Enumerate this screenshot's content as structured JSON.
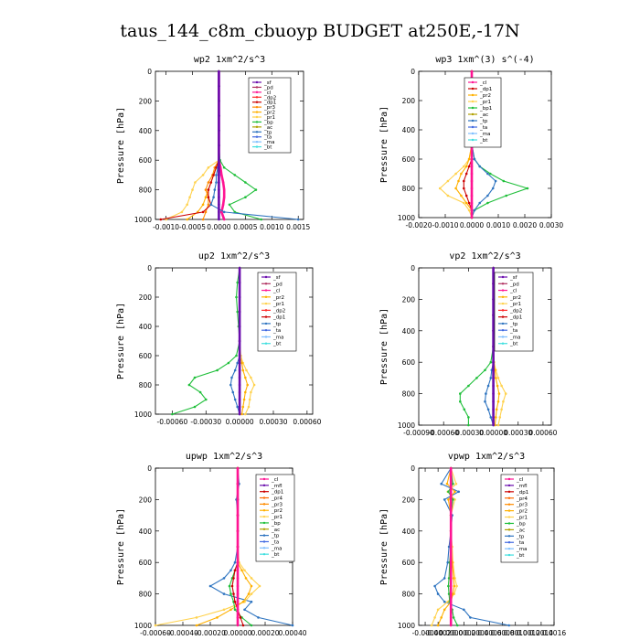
{
  "title": "taus_144_c8m_cbuoyp  BUDGET at250E,-17N",
  "ylabel": "Pressure [hPa]",
  "colors": {
    "sf": "#6a0dad",
    "mfl": "#6a0dad",
    "pd": "#b03060",
    "cl": "#ff1493",
    "dp2": "#ff2a2a",
    "dp1": "#cc0000",
    "pr1": "#ffd24d",
    "pr2": "#ffb000",
    "pr3": "#ff8c00",
    "pr4": "#ff6a00",
    "bp": "#1fbf3a",
    "bp1": "#1fbf3a",
    "ac": "#b0a000",
    "tp": "#2e74c0",
    "ta": "#4169e1",
    "ma": "#7fbfff",
    "bt": "#3fdfdf"
  },
  "chart_data": [
    {
      "type": "line",
      "title": "wp2  1xm^2/s^3",
      "xlim": [
        -0.0012,
        0.0016
      ],
      "xticks": [
        -0.001,
        -0.0005,
        0.0,
        0.0005,
        0.001,
        0.0015
      ],
      "xtick_labels": [
        "-0.0010",
        "-0.0005",
        "0.0000",
        "0.0005",
        "0.0010",
        "0.0015"
      ],
      "ylim": [
        1000,
        0
      ],
      "yticks": [
        0,
        200,
        400,
        600,
        800,
        1000
      ],
      "ytick_labels": [
        "0",
        "200",
        "400",
        "600",
        "800",
        "1000"
      ],
      "levels": [
        0,
        100,
        200,
        300,
        400,
        500,
        600,
        650,
        700,
        750,
        800,
        850,
        900,
        950,
        1000
      ],
      "legend": [
        "_sf",
        "_pd",
        "_cl",
        "_dp2",
        "_dp1",
        "_pr3",
        "_pr2",
        "_pr1",
        "_bp",
        "_ac",
        "_tp",
        "_ta",
        "_ma",
        "_bt"
      ],
      "series": [
        {
          "key": "pr1",
          "values": [
            0,
            0,
            0,
            0,
            0,
            0,
            0,
            -0.0002,
            -0.0003,
            -0.00045,
            -0.0005,
            -0.00055,
            -0.0006,
            -0.0007,
            -0.001
          ]
        },
        {
          "key": "pr2",
          "values": [
            0,
            0,
            0,
            0,
            0,
            0,
            0,
            -5e-05,
            -0.0001,
            -0.00015,
            -0.0002,
            -0.00025,
            -0.0003,
            -0.0004,
            -0.0006
          ]
        },
        {
          "key": "pr3",
          "values": [
            0,
            0,
            0,
            0,
            0,
            0,
            0,
            -8e-05,
            -0.00012,
            -0.0002,
            -0.00025,
            -0.0002,
            -0.0002,
            -0.00025,
            -0.0003
          ]
        },
        {
          "key": "dp1",
          "values": [
            0,
            0,
            0,
            0,
            0,
            0,
            0,
            -5e-05,
            -0.0001,
            -0.00015,
            -0.0002,
            -0.0002,
            -0.00015,
            -0.0003,
            -0.0011
          ]
        },
        {
          "key": "cl",
          "values": [
            0,
            0,
            0,
            0,
            0,
            0,
            0,
            3e-05,
            5e-05,
            8e-05,
            0.0001,
            0.0001,
            8e-05,
            5e-05,
            0.0001
          ]
        },
        {
          "key": "bp",
          "values": [
            0,
            0,
            0,
            0,
            0,
            0,
            2e-05,
            0.0001,
            0.0003,
            0.0005,
            0.0007,
            0.0005,
            0.0002,
            0.0003,
            0.0008
          ]
        },
        {
          "key": "tp",
          "values": [
            0,
            0,
            0,
            0,
            0,
            0,
            0,
            -2e-05,
            -5e-05,
            -5e-05,
            -8e-05,
            -0.0001,
            -0.00015,
            0.0001,
            0.0015
          ]
        },
        {
          "key": "sf",
          "values": [
            0,
            0,
            0,
            0,
            0,
            0,
            0,
            0,
            0,
            0,
            0,
            0,
            0,
            0,
            0
          ]
        }
      ]
    },
    {
      "type": "line",
      "title": "wp3  1xm^(3) s^(-4)",
      "xlim": [
        -0.002,
        0.003
      ],
      "xticks": [
        -0.002,
        -0.001,
        0.0,
        0.001,
        0.002,
        0.003
      ],
      "xtick_labels": [
        "-0.0020",
        "-0.0010",
        "0.0000",
        "0.0010",
        "0.0020",
        "0.0030"
      ],
      "ylim": [
        1000,
        0
      ],
      "yticks": [
        0,
        200,
        400,
        600,
        800,
        1000
      ],
      "ytick_labels": [
        "0",
        "200",
        "400",
        "600",
        "800",
        "1000"
      ],
      "levels": [
        0,
        100,
        200,
        300,
        400,
        500,
        600,
        650,
        700,
        750,
        800,
        850,
        900,
        950,
        1000
      ],
      "legend": [
        "_cl",
        "_dp1",
        "_pr2",
        "_pr1",
        "_bp1",
        "_ac",
        "_tp",
        "_ta",
        "_ma",
        "_bt"
      ],
      "series": [
        {
          "key": "pr1",
          "values": [
            0,
            0,
            0,
            0,
            0,
            0,
            -0.0001,
            -0.0003,
            -0.0006,
            -0.0009,
            -0.0012,
            -0.0009,
            -0.0003,
            -0.0001,
            0
          ]
        },
        {
          "key": "pr2",
          "values": [
            0,
            0,
            0,
            0,
            0,
            0,
            -0.0001,
            -0.0002,
            -0.0004,
            -0.0005,
            -0.0006,
            -0.0004,
            -0.0002,
            0,
            0
          ]
        },
        {
          "key": "bp1",
          "values": [
            0,
            0,
            0,
            0,
            0,
            0,
            0.0001,
            0.0003,
            0.0007,
            0.0012,
            0.0021,
            0.0013,
            0.0006,
            0.0001,
            0
          ]
        },
        {
          "key": "tp",
          "values": [
            0,
            0,
            0,
            0,
            0,
            0,
            0.0001,
            0.0003,
            0.0006,
            0.0009,
            0.0008,
            0.0006,
            0.0003,
            0.0001,
            0
          ]
        },
        {
          "key": "dp1",
          "values": [
            0,
            0,
            0,
            0,
            0,
            0,
            0,
            -0.0001,
            -0.0002,
            -0.0003,
            -0.0003,
            -0.0002,
            -0.0001,
            0,
            0
          ]
        },
        {
          "key": "cl",
          "values": [
            0,
            0,
            0,
            0,
            0,
            0,
            0,
            0,
            0,
            0,
            0,
            0,
            0,
            0,
            0
          ]
        }
      ]
    },
    {
      "type": "line",
      "title": "up2  1xm^2/s^3",
      "xlim": [
        -0.00075,
        0.00065
      ],
      "xticks": [
        -0.0006,
        -0.0003,
        0.0,
        0.0003,
        0.0006
      ],
      "xtick_labels": [
        "-0.00060",
        "-0.00030",
        "0.00000",
        "0.00030",
        "0.00060"
      ],
      "ylim": [
        1000,
        0
      ],
      "yticks": [
        0,
        200,
        400,
        600,
        800,
        1000
      ],
      "ytick_labels": [
        "0",
        "200",
        "400",
        "600",
        "800",
        "1000"
      ],
      "levels": [
        0,
        100,
        200,
        300,
        400,
        500,
        600,
        650,
        700,
        750,
        800,
        850,
        900,
        950,
        1000
      ],
      "legend": [
        "_sf",
        "_pd",
        "_cl",
        "_pr2",
        "_pr1",
        "_dp2",
        "_dp1",
        "_tp",
        "_ta",
        "_ma",
        "_bt"
      ],
      "series": [
        {
          "key": "bp",
          "values": [
            0,
            -2e-05,
            -3e-05,
            -2e-05,
            -1e-05,
            0,
            -3e-05,
            -0.0001,
            -0.0002,
            -0.0004,
            -0.00045,
            -0.00035,
            -0.0003,
            -0.0004,
            -0.0006
          ]
        },
        {
          "key": "pr1",
          "values": [
            0,
            0,
            0,
            0,
            0,
            0,
            1e-05,
            3e-05,
            6e-05,
            0.0001,
            0.00013,
            0.0001,
            9e-05,
            8e-05,
            5e-05
          ]
        },
        {
          "key": "pr2",
          "values": [
            0,
            0,
            0,
            0,
            0,
            0,
            0,
            2e-05,
            3e-05,
            5e-05,
            7e-05,
            5e-05,
            4e-05,
            3e-05,
            2e-05
          ]
        },
        {
          "key": "tp",
          "values": [
            0,
            0,
            0,
            0,
            0,
            0,
            0,
            -2e-05,
            -4e-05,
            -7e-05,
            -8e-05,
            -6e-05,
            -4e-05,
            -2e-05,
            0
          ]
        },
        {
          "key": "sf",
          "values": [
            0,
            0,
            0,
            0,
            0,
            0,
            0,
            0,
            0,
            0,
            0,
            0,
            0,
            0,
            0
          ]
        }
      ]
    },
    {
      "type": "line",
      "title": "vp2  1xm^2/s^3",
      "xlim": [
        -0.0009,
        0.0007
      ],
      "xticks": [
        -0.0009,
        -0.0006,
        -0.0003,
        0.0,
        0.0003,
        0.0006
      ],
      "xtick_labels": [
        "-0.00090",
        "-0.00060",
        "-0.00030",
        "0.00000",
        "0.00030",
        "0.00060"
      ],
      "ylim": [
        1000,
        0
      ],
      "yticks": [
        0,
        200,
        400,
        600,
        800,
        1000
      ],
      "ytick_labels": [
        "0",
        "200",
        "400",
        "600",
        "800",
        "1000"
      ],
      "levels": [
        0,
        100,
        200,
        300,
        400,
        500,
        600,
        650,
        700,
        750,
        800,
        850,
        900,
        950,
        1000
      ],
      "legend": [
        "_sf",
        "_pd",
        "_cl",
        "_pr2",
        "_pr1",
        "_dp2",
        "_dp1",
        "_tp",
        "_ta",
        "_ma",
        "_bt"
      ],
      "series": [
        {
          "key": "bp",
          "values": [
            0,
            2e-05,
            3e-05,
            2e-05,
            1e-05,
            0,
            -3e-05,
            -0.0001,
            -0.0002,
            -0.0003,
            -0.0004,
            -0.0004,
            -0.00035,
            -0.0003,
            -0.0003
          ]
        },
        {
          "key": "pr1",
          "values": [
            0,
            0,
            0,
            0,
            0,
            0,
            1e-05,
            3e-05,
            6e-05,
            0.0001,
            0.00015,
            0.00012,
            0.0001,
            8e-05,
            6e-05
          ]
        },
        {
          "key": "pr2",
          "values": [
            0,
            0,
            0,
            0,
            0,
            0,
            0,
            2e-05,
            3e-05,
            5e-05,
            7e-05,
            6e-05,
            4e-05,
            3e-05,
            2e-05
          ]
        },
        {
          "key": "tp",
          "values": [
            0,
            0,
            0,
            0,
            0,
            0,
            0,
            -2e-05,
            -3e-05,
            -6e-05,
            -9e-05,
            -0.0001,
            -6e-05,
            -3e-05,
            0
          ]
        },
        {
          "key": "sf",
          "values": [
            0,
            0,
            0,
            0,
            0,
            0,
            0,
            0,
            0,
            0,
            0,
            0,
            0,
            0,
            0
          ]
        }
      ]
    },
    {
      "type": "line",
      "title": "upwp  1xm^2/s^3",
      "xlim": [
        -0.0006,
        0.0004
      ],
      "xticks": [
        -0.0006,
        -0.0004,
        -0.0002,
        0.0,
        0.0002,
        0.0004
      ],
      "xtick_labels": [
        "-0.00060",
        "-0.00040",
        "-0.00020",
        "0.00000",
        "0.00020",
        "0.00040"
      ],
      "ylim": [
        1000,
        0
      ],
      "yticks": [
        0,
        200,
        400,
        600,
        800,
        1000
      ],
      "ytick_labels": [
        "0",
        "200",
        "400",
        "600",
        "800",
        "1000"
      ],
      "levels": [
        0,
        100,
        200,
        300,
        400,
        500,
        600,
        650,
        700,
        750,
        800,
        850,
        900,
        950,
        1000
      ],
      "legend": [
        "_cl",
        "_mfl",
        "_dp1",
        "_pr4",
        "_pr3",
        "_pr2",
        "_pr1",
        "_bp",
        "_ac",
        "_tp",
        "_ta",
        "_ma",
        "_bt"
      ],
      "series": [
        {
          "key": "tp",
          "values": [
            0,
            1e-05,
            -1e-05,
            0,
            0,
            0,
            -2e-05,
            -5e-05,
            -0.0001,
            -0.0002,
            -0.0001,
            0.0001,
            5e-05,
            0.00015,
            0.0004
          ]
        },
        {
          "key": "pr1",
          "values": [
            0,
            0,
            0,
            0,
            0,
            0,
            1e-05,
            5e-05,
            0.0001,
            0.00016,
            0.0001,
            5e-05,
            -0.0001,
            -0.0003,
            -0.0006
          ]
        },
        {
          "key": "pr2",
          "values": [
            0,
            0,
            0,
            0,
            0,
            0,
            0,
            3e-05,
            6e-05,
            0.0001,
            8e-05,
            4e-05,
            -5e-05,
            -0.00015,
            -0.0003
          ]
        },
        {
          "key": "bp",
          "values": [
            0,
            0,
            0,
            0,
            0,
            0,
            0,
            -2e-05,
            -4e-05,
            -6e-05,
            -5e-05,
            -3e-05,
            -2e-05,
            3e-05,
            0.0001
          ]
        },
        {
          "key": "dp1",
          "values": [
            0,
            0,
            0,
            0,
            0,
            0,
            0,
            -2e-05,
            -3e-05,
            -4e-05,
            -3e-05,
            -2e-05,
            0,
            2e-05,
            4e-05
          ]
        },
        {
          "key": "cl",
          "values": [
            0,
            0,
            0,
            0,
            0,
            0,
            0,
            0,
            0,
            0,
            0,
            0,
            0,
            0,
            0
          ]
        }
      ]
    },
    {
      "type": "line",
      "title": "vpwp  1xm^2/s^3",
      "xlim": [
        -0.0005,
        0.0016
      ],
      "xticks": [
        -0.0004,
        -0.0002,
        0.0,
        0.0002,
        0.0004,
        0.0006,
        0.0008,
        0.001,
        0.0012,
        0.0014,
        0.0016
      ],
      "xtick_labels": [
        "-0.0004",
        "-0.0002",
        "0.0000",
        "0.0002",
        "0.0004",
        "0.0006",
        "0.0008",
        "0.0010",
        "0.0012",
        "0.0014",
        "0.0016"
      ],
      "ylim": [
        1000,
        0
      ],
      "yticks": [
        0,
        200,
        400,
        600,
        800,
        1000
      ],
      "ytick_labels": [
        "0",
        "200",
        "400",
        "600",
        "800",
        "1000"
      ],
      "levels": [
        0,
        100,
        150,
        200,
        300,
        400,
        500,
        600,
        700,
        750,
        800,
        850,
        900,
        950,
        1000
      ],
      "legend": [
        "_cl",
        "_mfl",
        "_dp1",
        "_pr4",
        "_pr3",
        "_pr2",
        "_pr1",
        "_bp",
        "_ac",
        "_tp",
        "_ta",
        "_ma",
        "_bt"
      ],
      "series": [
        {
          "key": "tp",
          "values": [
            0,
            -0.00015,
            0.00012,
            -0.0001,
            2e-05,
            0,
            -3e-05,
            -5e-05,
            -0.0001,
            -0.00025,
            -0.0002,
            -0.0001,
            0.0002,
            0.0003,
            0.0009
          ]
        },
        {
          "key": "pr1",
          "values": [
            0,
            8e-05,
            -5e-05,
            6e-05,
            0,
            0,
            2e-05,
            3e-05,
            6e-05,
            9e-05,
            5e-05,
            -5e-05,
            -0.0002,
            -0.00025,
            -0.0003
          ]
        },
        {
          "key": "pr2",
          "values": [
            0,
            -6e-05,
            6e-05,
            -4e-05,
            0,
            0,
            0,
            2e-05,
            4e-05,
            5e-05,
            3e-05,
            0,
            -0.0001,
            -0.00015,
            -0.0002
          ]
        },
        {
          "key": "bp",
          "values": [
            0,
            3e-05,
            -4e-05,
            3e-05,
            0,
            0,
            0,
            -2e-05,
            -3e-05,
            -4e-05,
            -3e-05,
            -2e-05,
            2e-05,
            4e-05,
            0.0001
          ]
        },
        {
          "key": "cl",
          "values": [
            0,
            0,
            0,
            0,
            0,
            0,
            0,
            0,
            0,
            0,
            0,
            0,
            0,
            0,
            0
          ]
        }
      ]
    }
  ]
}
